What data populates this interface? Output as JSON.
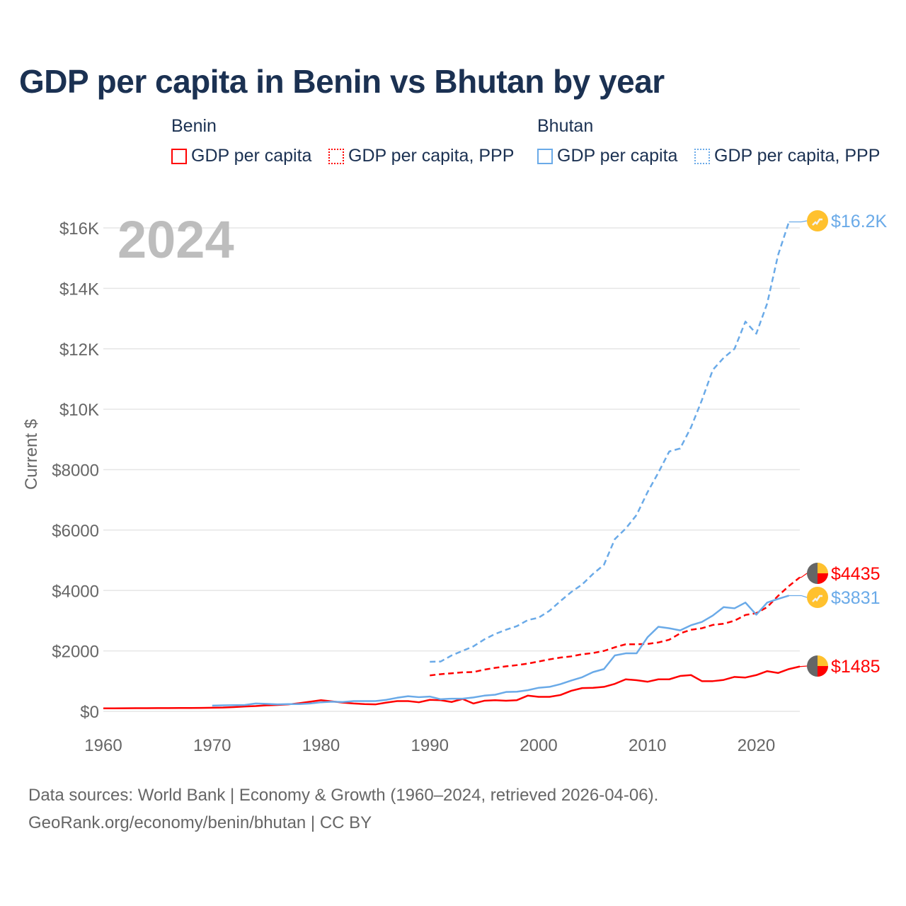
{
  "title": "GDP per capita in Benin vs Bhutan by year",
  "legend": {
    "groups": [
      {
        "name": "Benin",
        "items": [
          "GDP per capita",
          "GDP per capita, PPP"
        ]
      },
      {
        "name": "Bhutan",
        "items": [
          "GDP per capita",
          "GDP per capita, PPP"
        ]
      }
    ]
  },
  "year_overlay": "2024",
  "source_line1": "Data sources: World Bank | Economy & Growth (1960–2024, retrieved 2026-04-06).",
  "source_line2": "GeoRank.org/economy/benin/bhutan | CC BY",
  "colors": {
    "benin": "#ff0000",
    "bhutan": "#6aaae8",
    "title": "#1b3152"
  },
  "chart_data": {
    "type": "line",
    "title": "GDP per capita in Benin vs Bhutan by year",
    "xlabel": "",
    "ylabel": "Current $",
    "xlim": [
      1960,
      2024
    ],
    "ylim": [
      0,
      16500
    ],
    "xticks": [
      1960,
      1970,
      1980,
      1990,
      2000,
      2010,
      2020
    ],
    "yticks": [
      0,
      2000,
      4000,
      6000,
      8000,
      10000,
      12000,
      14000,
      16000
    ],
    "ytick_labels": [
      "$0",
      "$2000",
      "$4000",
      "$6000",
      "$8000",
      "$10K",
      "$12K",
      "$14K",
      "$16K"
    ],
    "grid": true,
    "series": [
      {
        "name": "Benin GDP per capita",
        "country": "Benin",
        "style": "solid",
        "color": "#ff0000",
        "end_label": "$1485",
        "start": 1960,
        "values": [
          100,
          101,
          102,
          104,
          105,
          107,
          109,
          110,
          112,
          115,
          120,
          125,
          140,
          160,
          175,
          200,
          210,
          230,
          270,
          320,
          370,
          330,
          290,
          260,
          240,
          230,
          290,
          340,
          340,
          300,
          380,
          370,
          310,
          410,
          260,
          350,
          370,
          350,
          370,
          520,
          480,
          480,
          540,
          680,
          770,
          780,
          810,
          910,
          1060,
          1030,
          980,
          1060,
          1060,
          1170,
          1200,
          1000,
          1000,
          1040,
          1140,
          1120,
          1200,
          1330,
          1270,
          1400,
          1485
        ]
      },
      {
        "name": "Benin GDP per capita, PPP",
        "country": "Benin",
        "style": "dashed",
        "color": "#ff0000",
        "end_label": "$4435",
        "start": 1990,
        "values": [
          1190,
          1230,
          1260,
          1290,
          1300,
          1380,
          1440,
          1490,
          1530,
          1580,
          1650,
          1720,
          1780,
          1820,
          1890,
          1930,
          2000,
          2120,
          2220,
          2220,
          2230,
          2280,
          2370,
          2580,
          2700,
          2750,
          2860,
          2900,
          3000,
          3190,
          3250,
          3450,
          3820,
          4150,
          4435
        ]
      },
      {
        "name": "Bhutan GDP per capita",
        "country": "Bhutan",
        "style": "solid",
        "color": "#6aaae8",
        "end_label": "$3831",
        "start": 1970,
        "values": [
          190,
          200,
          205,
          210,
          260,
          250,
          230,
          240,
          240,
          260,
          300,
          320,
          310,
          340,
          340,
          340,
          380,
          450,
          500,
          470,
          490,
          400,
          420,
          420,
          460,
          520,
          550,
          640,
          650,
          700,
          780,
          810,
          900,
          1020,
          1130,
          1300,
          1400,
          1850,
          1920,
          1920,
          2450,
          2800,
          2750,
          2680,
          2850,
          2960,
          3170,
          3450,
          3410,
          3600,
          3200,
          3600,
          3720,
          3831
        ]
      },
      {
        "name": "Bhutan GDP per capita, PPP",
        "country": "Bhutan",
        "style": "dashed",
        "color": "#6aaae8",
        "end_label": "$16.2K",
        "start": 1990,
        "values": [
          1640,
          1650,
          1850,
          2000,
          2150,
          2380,
          2560,
          2700,
          2820,
          3020,
          3100,
          3330,
          3650,
          3950,
          4200,
          4550,
          4850,
          5700,
          6050,
          6500,
          7250,
          7900,
          8600,
          8700,
          9400,
          10300,
          11300,
          11700,
          12000,
          12900,
          12500,
          13500,
          15100,
          16200
        ]
      }
    ]
  }
}
